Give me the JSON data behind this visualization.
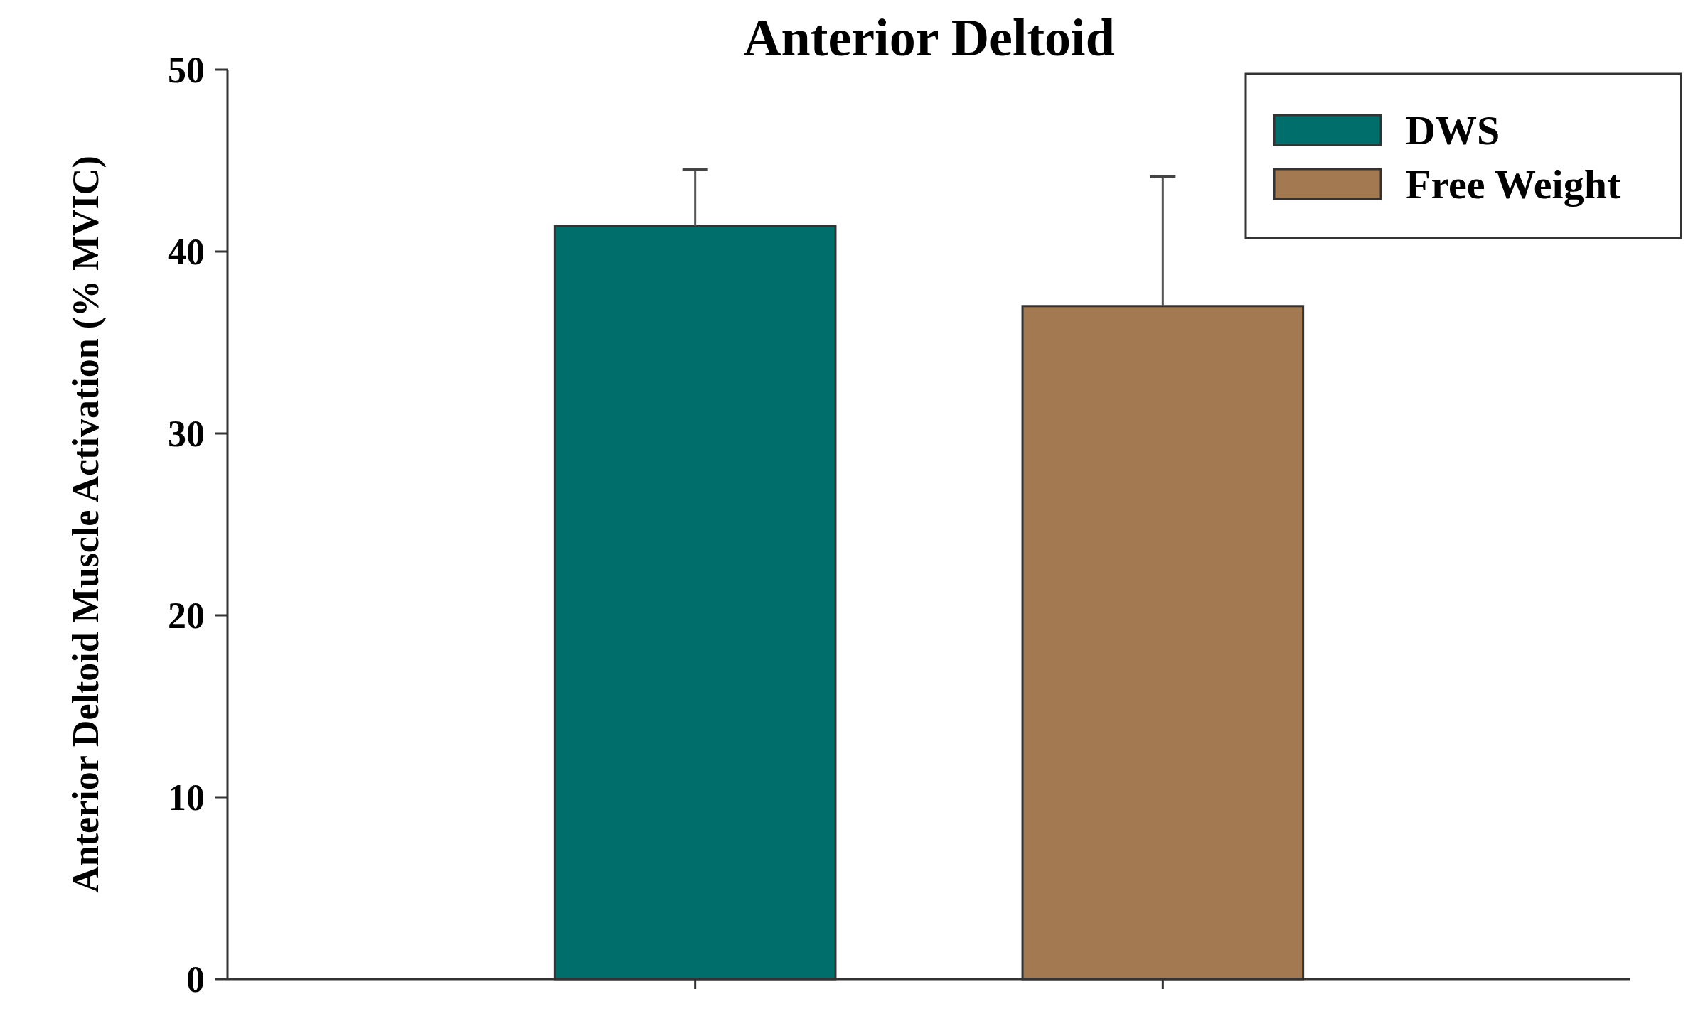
{
  "chart_data": {
    "type": "bar",
    "title": "Anterior Deltoid",
    "ylabel": "Anterior Deltoid Muscle Activation (% MVIC)",
    "categories": [
      null,
      null
    ],
    "series": [
      {
        "name": "DWS",
        "color": "#006e6b",
        "values": [
          41.4,
          null
        ],
        "errors": [
          [
            41.4,
            44.5
          ],
          null
        ]
      },
      {
        "name": "Free Weight",
        "color": "#a37952",
        "values": [
          null,
          37.0
        ],
        "errors": [
          null,
          [
            37.0,
            44.1
          ]
        ]
      }
    ],
    "ylim": [
      0,
      50
    ],
    "yticks": [
      0,
      10,
      20,
      30,
      40,
      50
    ],
    "tick_labels": "y",
    "legend": "top right"
  }
}
